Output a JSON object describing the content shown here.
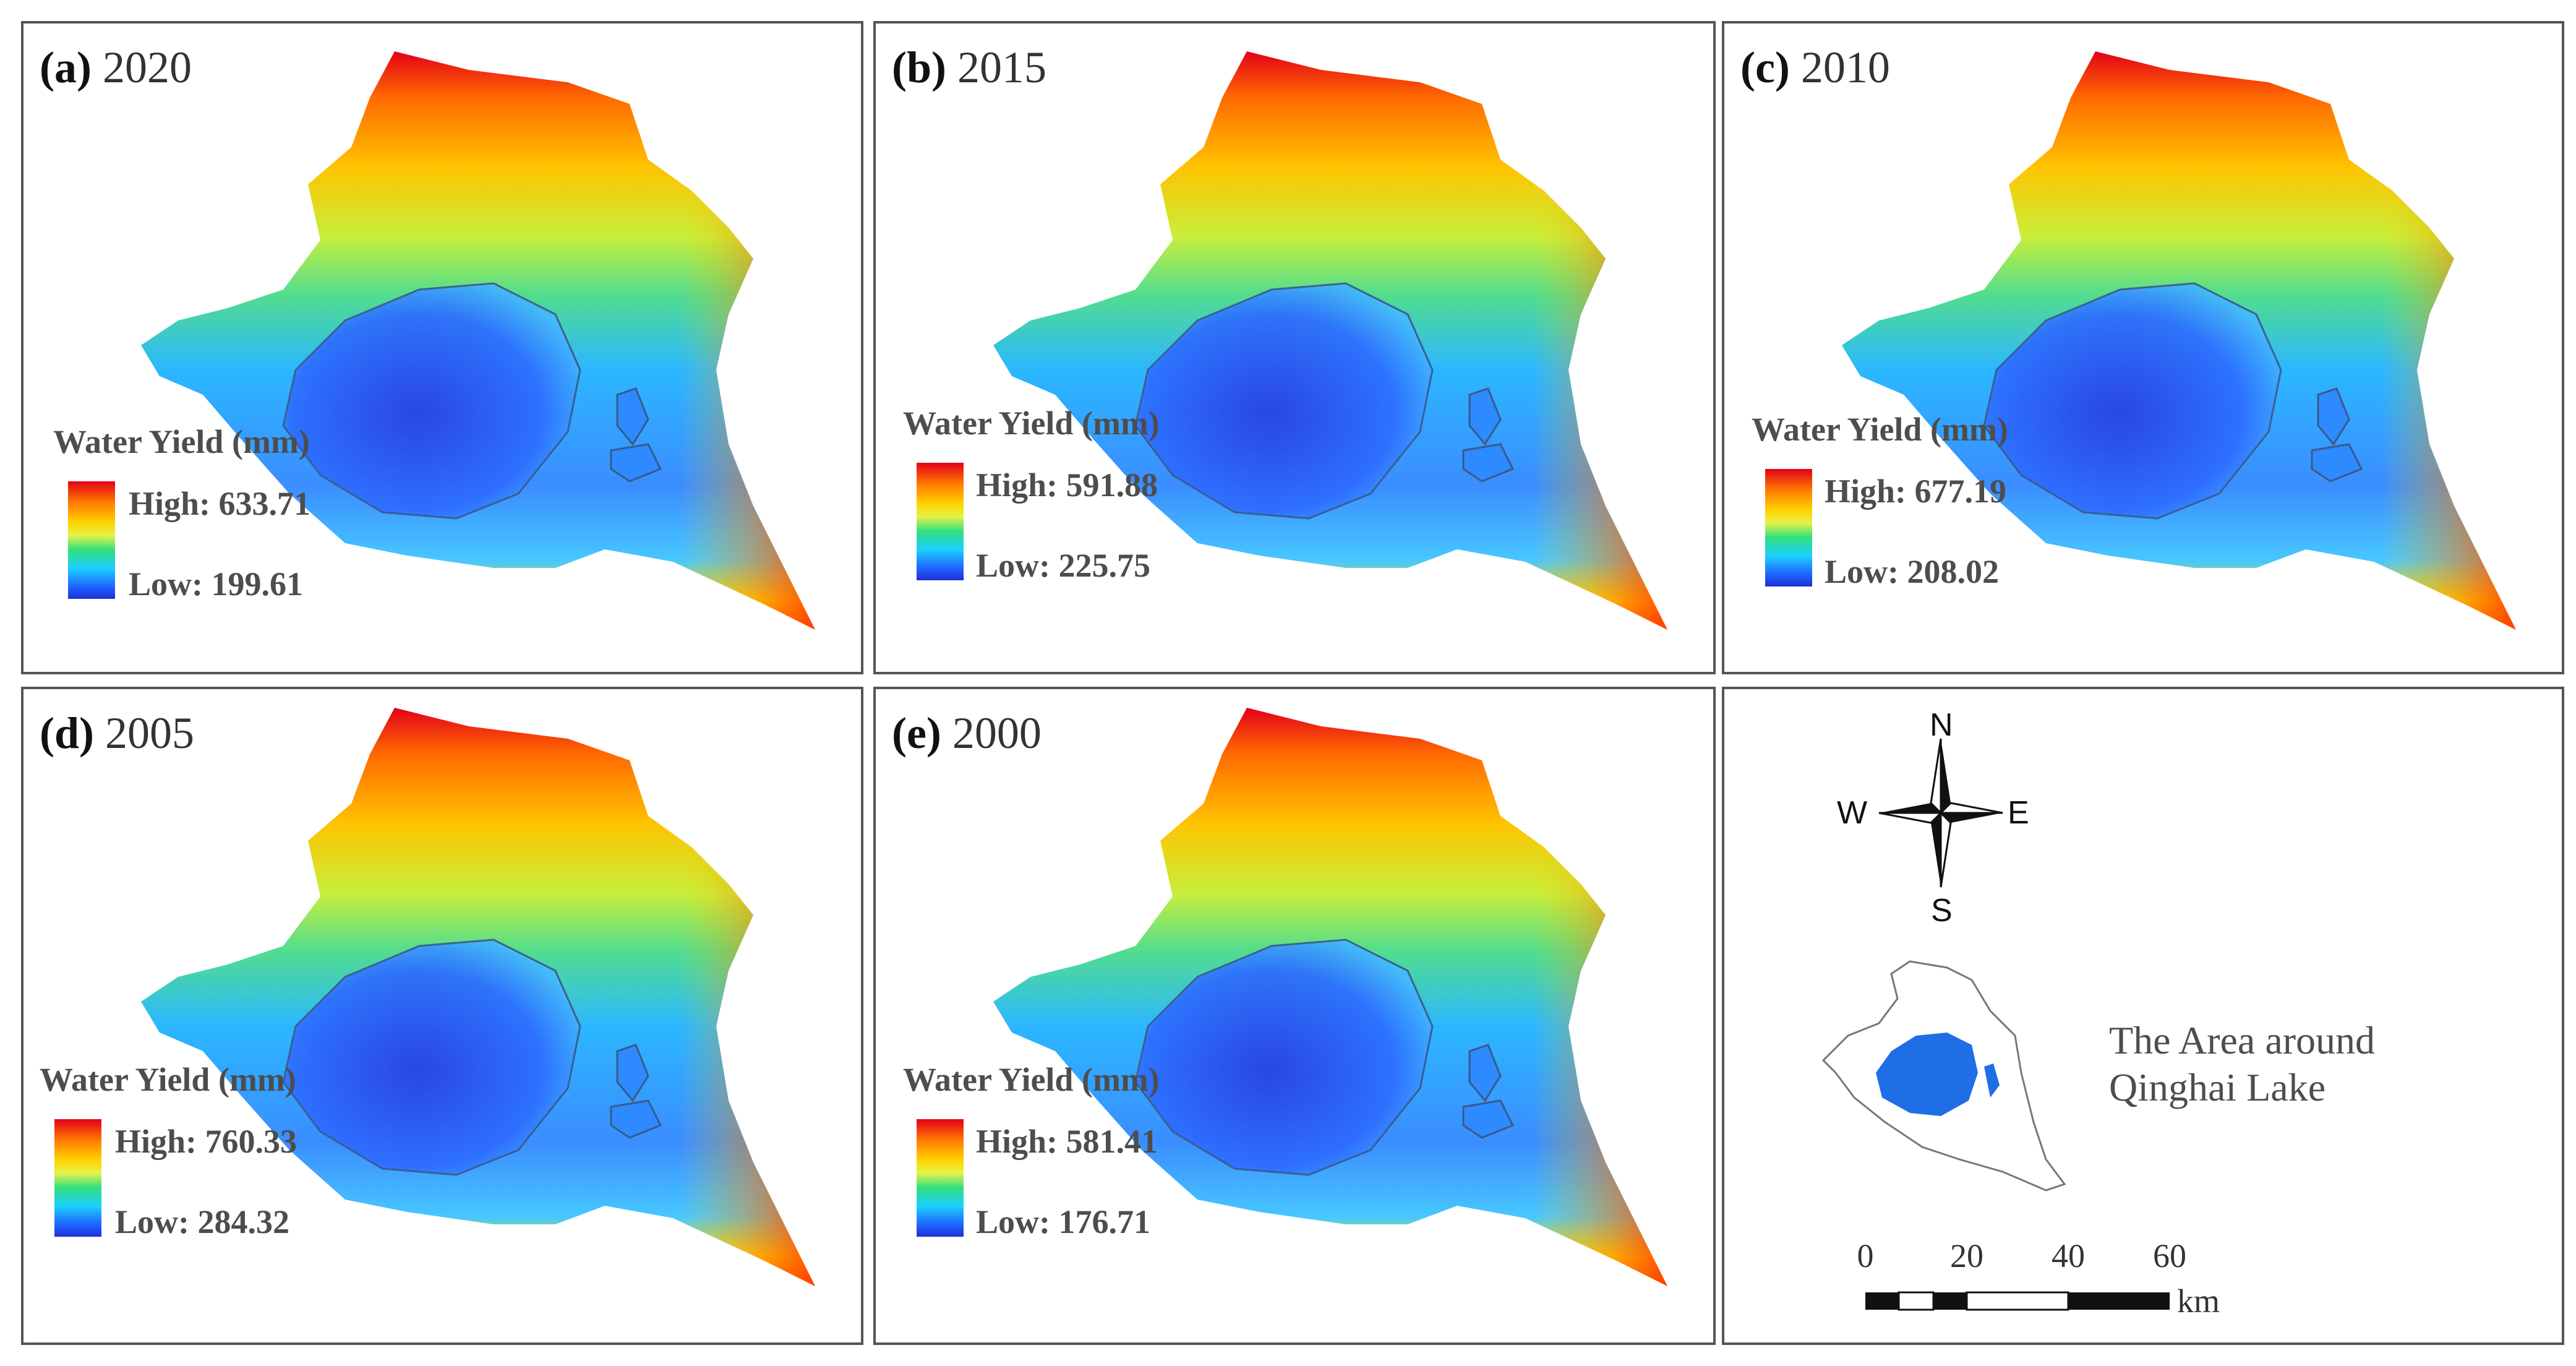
{
  "figure": {
    "colors": {
      "high": "#e3001a",
      "mid": "#e6f24a",
      "low": "#1f2fd6",
      "lake_locator": "#1e6fe6",
      "outline": "#555555"
    },
    "panels": [
      {
        "label": "(a)",
        "year": "2020",
        "legend_title": "Water Yield (mm)",
        "high": "High: 633.71",
        "low": "Low: 199.61"
      },
      {
        "label": "(b)",
        "year": "2015",
        "legend_title": "Water Yield (mm)",
        "high": "High: 591.88",
        "low": "Low: 225.75"
      },
      {
        "label": "(c)",
        "year": "2010",
        "legend_title": "Water Yield (mm)",
        "high": "High: 677.19",
        "low": "Low: 208.02"
      },
      {
        "label": "(d)",
        "year": "2005",
        "legend_title": "Water Yield (mm)",
        "high": "High: 760.33",
        "low": "Low: 284.32"
      },
      {
        "label": "(e)",
        "year": "2000",
        "legend_title": "Water Yield (mm)",
        "high": "High: 581.41",
        "low": "Low: 176.71"
      }
    ],
    "locator": {
      "compass": {
        "n": "N",
        "s": "S",
        "e": "E",
        "w": "W",
        "icon": "compass-rose-icon"
      },
      "area_label_line1": "The Area around",
      "area_label_line2": "Qinghai Lake",
      "scale_ticks": [
        "0",
        "20",
        "40",
        "60"
      ],
      "scale_unit": "km"
    }
  }
}
